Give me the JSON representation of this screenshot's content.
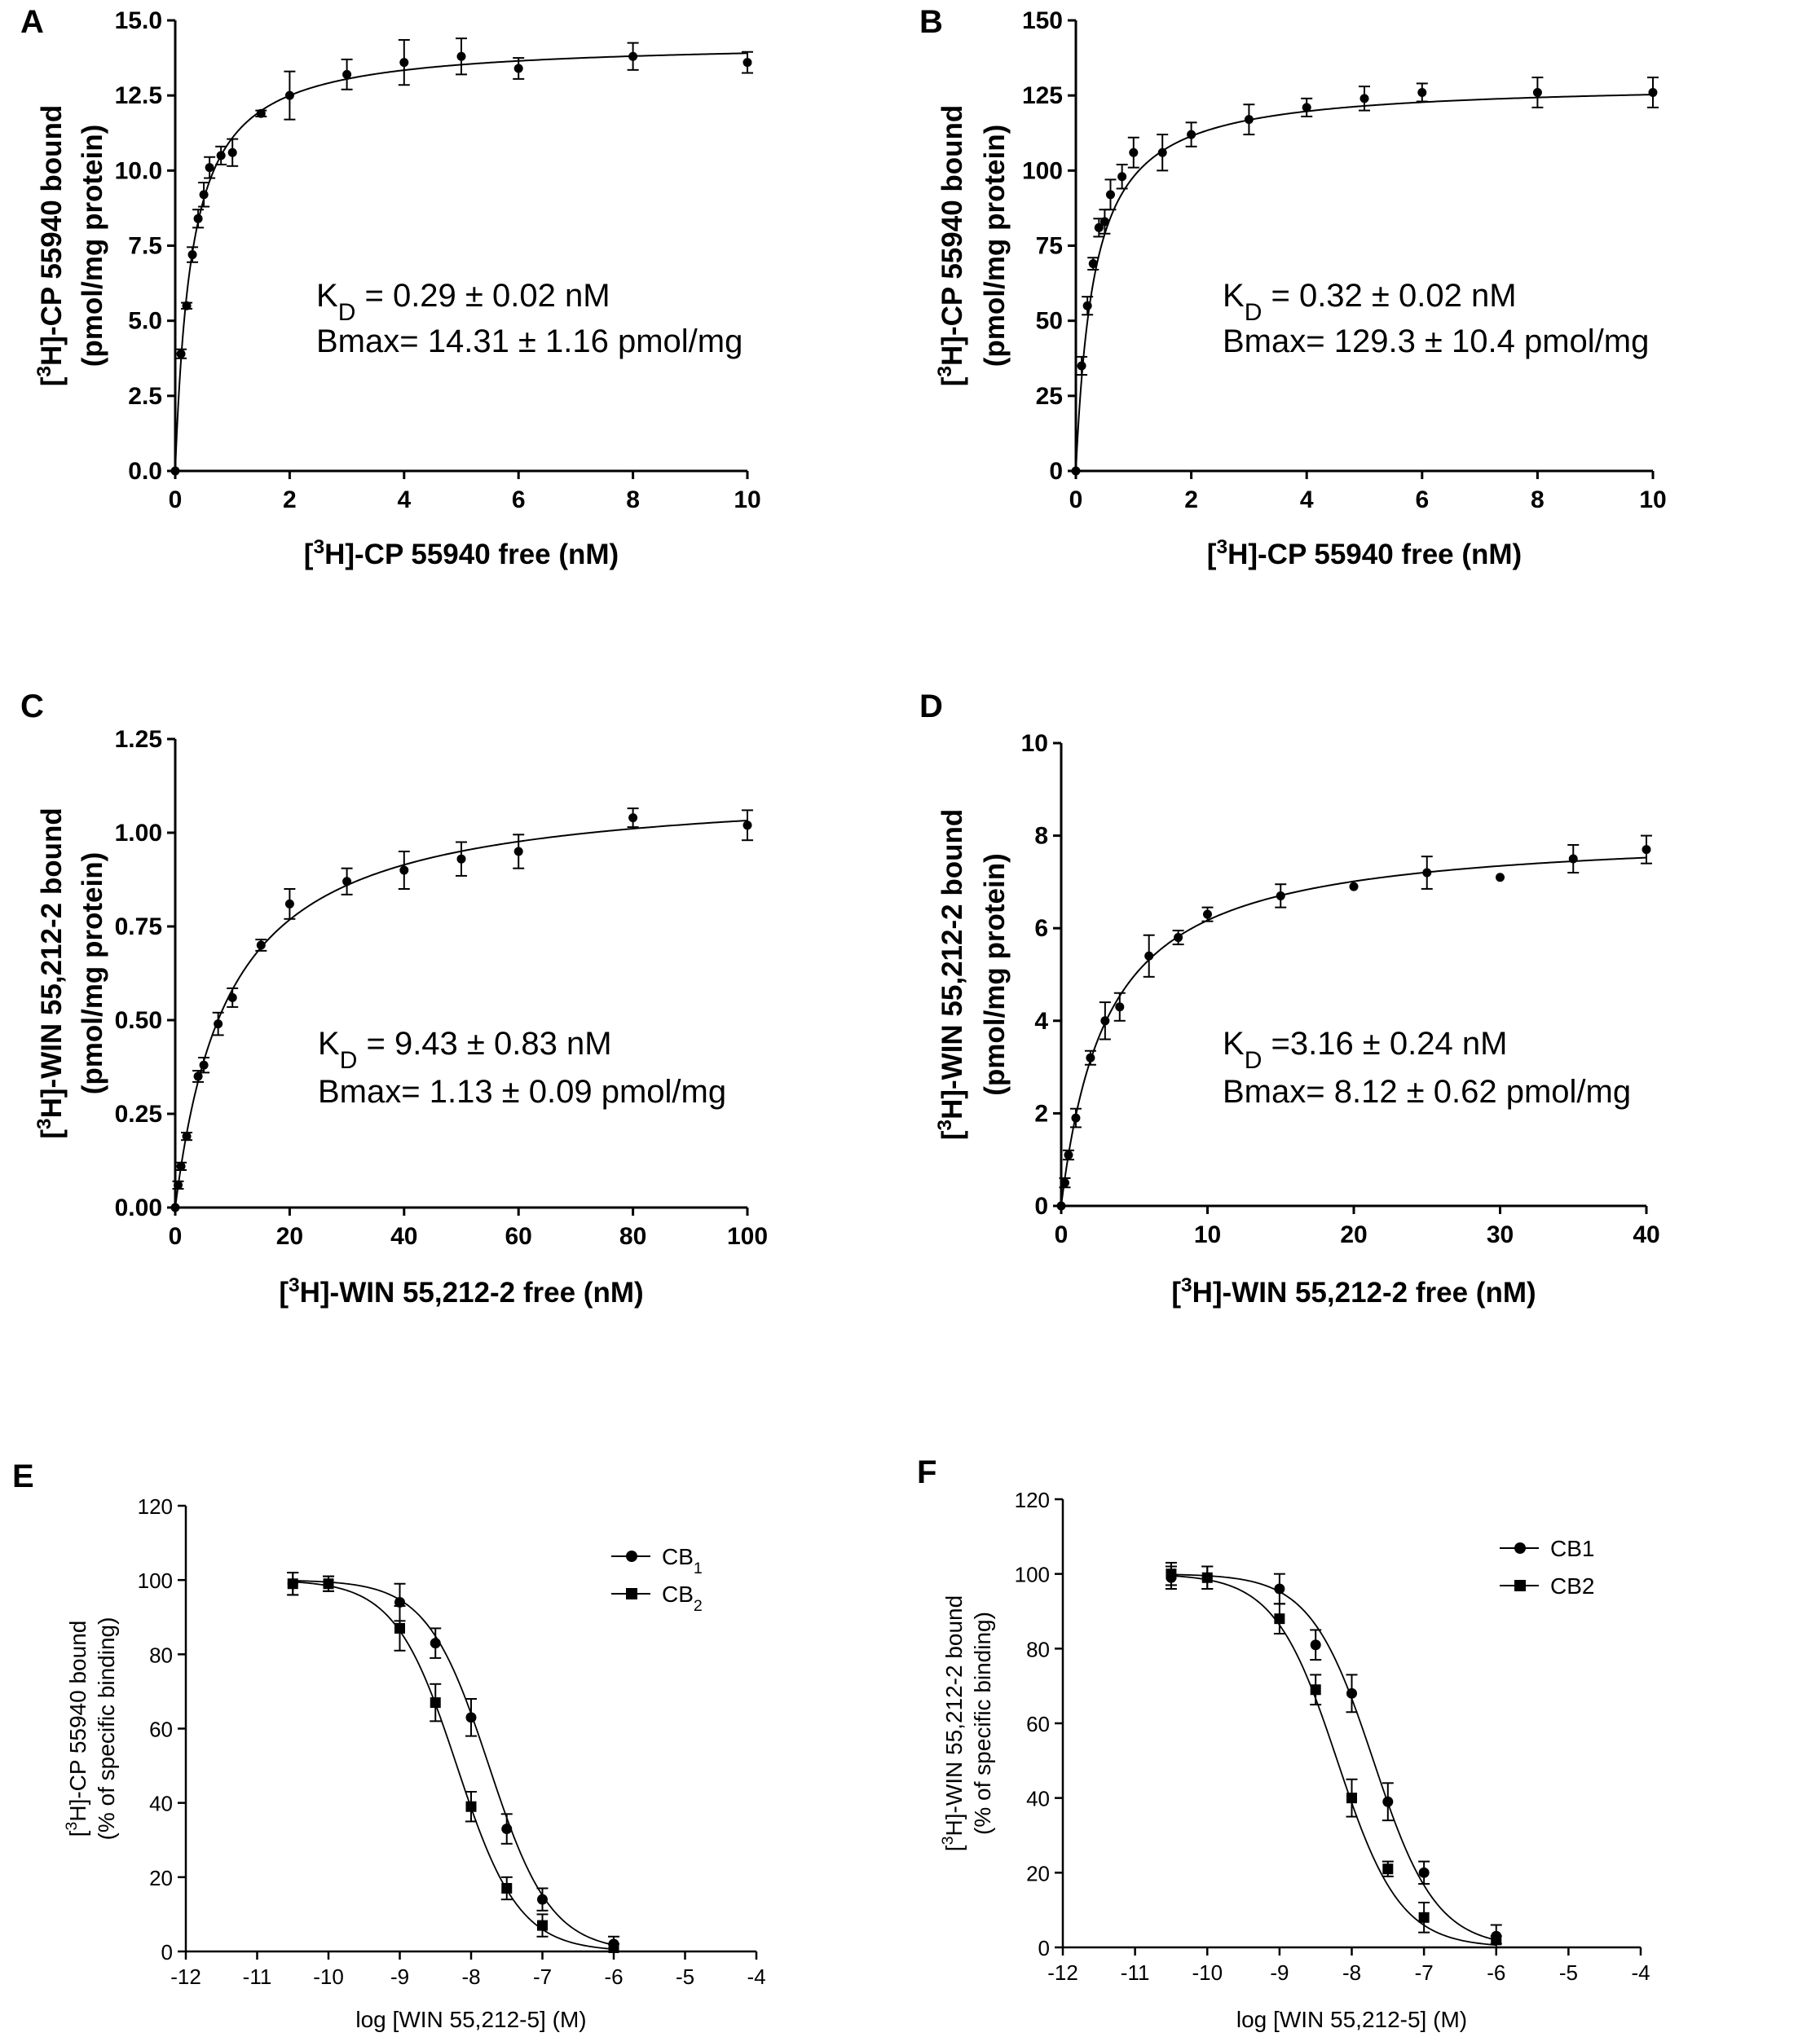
{
  "chart_data": [
    {
      "panel": "A",
      "type": "scatter",
      "title": "",
      "xlabel": "[³H]-CP 55940 free (nM)",
      "ylabel": "[³H]-CP 55940 bound (pmol/mg protein)",
      "ylabel_line1": "[³H]-CP 55940 bound",
      "ylabel_line2": "(pmol/mg protein)",
      "xlim": [
        0,
        10
      ],
      "ylim": [
        0,
        15
      ],
      "xticks": [
        0,
        2,
        4,
        6,
        8,
        10
      ],
      "yticks": [
        0,
        2.5,
        5,
        7.5,
        10,
        12.5,
        15
      ],
      "ytick_labels": [
        "0.0",
        "2.5",
        "5.0",
        "7.5",
        "10.0",
        "12.5",
        "15.0"
      ],
      "fit": {
        "model": "one-site",
        "bmax": 14.31,
        "kd": 0.29
      },
      "annotation_kd": "KD = 0.29 ± 0.02 nM",
      "annotation_bmax": "Bmax= 14.31 ± 1.16 pmol/mg",
      "series": [
        {
          "name": "data",
          "x": [
            0,
            0.1,
            0.2,
            0.3,
            0.4,
            0.5,
            0.6,
            0.8,
            1.0,
            1.5,
            2,
            3,
            4,
            5,
            6,
            8,
            10
          ],
          "y": [
            0,
            3.9,
            5.5,
            7.2,
            8.4,
            9.2,
            10.1,
            10.5,
            10.6,
            11.9,
            12.5,
            13.2,
            13.6,
            13.8,
            13.4,
            13.8,
            13.6
          ],
          "err": [
            0,
            0.15,
            0.1,
            0.25,
            0.3,
            0.4,
            0.35,
            0.3,
            0.45,
            0.1,
            0.8,
            0.5,
            0.75,
            0.6,
            0.35,
            0.45,
            0.35
          ]
        }
      ]
    },
    {
      "panel": "B",
      "type": "scatter",
      "title": "",
      "xlabel": "[³H]-CP 55940 free (nM)",
      "ylabel": "[³H]-CP 55940 bound (pmol/mg protein)",
      "ylabel_line1": "[³H]-CP 55940 bound",
      "ylabel_line2": "(pmol/mg protein)",
      "xlim": [
        0,
        10
      ],
      "ylim": [
        0,
        150
      ],
      "xticks": [
        0,
        2,
        4,
        6,
        8,
        10
      ],
      "yticks": [
        0,
        25,
        50,
        75,
        100,
        125,
        150
      ],
      "ytick_labels": [
        "0",
        "25",
        "50",
        "75",
        "100",
        "125",
        "150"
      ],
      "fit": {
        "model": "one-site",
        "bmax": 129.3,
        "kd": 0.32
      },
      "annotation_kd": "KD = 0.32 ± 0.02 nM",
      "annotation_bmax": "Bmax= 129.3 ± 10.4 pmol/mg",
      "series": [
        {
          "name": "data",
          "x": [
            0,
            0.1,
            0.2,
            0.3,
            0.4,
            0.5,
            0.6,
            0.8,
            1.0,
            1.5,
            2,
            3,
            4,
            5,
            6,
            8,
            10
          ],
          "y": [
            0,
            35,
            55,
            69,
            81,
            83,
            92,
            98,
            106,
            106,
            112,
            117,
            121,
            124,
            126,
            126,
            126
          ],
          "err": [
            0,
            3,
            3,
            2,
            3,
            4,
            5,
            4,
            5,
            6,
            4,
            5,
            3,
            4,
            3,
            5,
            5
          ]
        }
      ]
    },
    {
      "panel": "C",
      "type": "scatter",
      "title": "",
      "xlabel": "[³H]-WIN 55,212-2 free (nM)",
      "ylabel": "[³H]-WIN 55,212-2 bound (pmol/mg protein)",
      "ylabel_line1": "[³H]-WIN 55,212-2 bound",
      "ylabel_line2": "(pmol/mg protein)",
      "xlim": [
        0,
        100
      ],
      "ylim": [
        0,
        1.25
      ],
      "xticks": [
        0,
        20,
        40,
        60,
        80,
        100
      ],
      "yticks": [
        0,
        0.25,
        0.5,
        0.75,
        1.0,
        1.25
      ],
      "ytick_labels": [
        "0.00",
        "0.25",
        "0.50",
        "0.75",
        "1.00",
        "1.25"
      ],
      "fit": {
        "model": "one-site",
        "bmax": 1.13,
        "kd": 9.43
      },
      "annotation_kd": "KD = 9.43 ± 0.83 nM",
      "annotation_bmax": "Bmax= 1.13 ± 0.09 pmol/mg",
      "series": [
        {
          "name": "data",
          "x": [
            0,
            0.5,
            1,
            2,
            4,
            5,
            7.5,
            10,
            15,
            20,
            30,
            40,
            50,
            60,
            80,
            100
          ],
          "y": [
            0,
            0.06,
            0.11,
            0.19,
            0.35,
            0.38,
            0.49,
            0.56,
            0.7,
            0.81,
            0.87,
            0.9,
            0.93,
            0.95,
            1.04,
            1.02
          ],
          "err": [
            0,
            0.01,
            0.01,
            0.01,
            0.015,
            0.02,
            0.03,
            0.025,
            0.015,
            0.04,
            0.035,
            0.05,
            0.045,
            0.045,
            0.025,
            0.04
          ]
        }
      ]
    },
    {
      "panel": "D",
      "type": "scatter",
      "title": "",
      "xlabel": "[³H]-WIN 55,212-2 free (nM)",
      "ylabel": "[³H]-WIN 55,212-2 bound (pmol/mg protein)",
      "ylabel_line1": "[³H]-WIN 55,212-2 bound",
      "ylabel_line2": "(pmol/mg protein)",
      "xlim": [
        0,
        40
      ],
      "ylim": [
        0,
        10
      ],
      "xticks": [
        0,
        10,
        20,
        30,
        40
      ],
      "yticks": [
        0,
        2,
        4,
        6,
        8,
        10
      ],
      "ytick_labels": [
        "0",
        "2",
        "4",
        "6",
        "8",
        "10"
      ],
      "fit": {
        "model": "one-site",
        "bmax": 8.12,
        "kd": 3.16
      },
      "annotation_kd": "KD =3.16 ± 0.24 nM",
      "annotation_bmax": "Bmax= 8.12 ± 0.62 pmol/mg",
      "series": [
        {
          "name": "data",
          "x": [
            0,
            0.25,
            0.5,
            1,
            2,
            3,
            4,
            6,
            8,
            10,
            15,
            20,
            25,
            30,
            35,
            40
          ],
          "y": [
            0,
            0.5,
            1.1,
            1.9,
            3.2,
            4.0,
            4.3,
            5.4,
            5.8,
            6.3,
            6.7,
            6.9,
            7.2,
            7.1,
            7.5,
            7.7
          ],
          "err": [
            0,
            0.1,
            0.1,
            0.2,
            0.15,
            0.4,
            0.3,
            0.45,
            0.15,
            0.15,
            0.25,
            0,
            0.35,
            0,
            0.3,
            0.3
          ]
        }
      ]
    },
    {
      "panel": "E",
      "type": "scatter",
      "title": "",
      "xlabel": "log [WIN 55,212-5] (M)",
      "ylabel": "[³H]-CP 55940 bound (% of specific binding)",
      "ylabel_line1": "[³H]-CP 55940 bound",
      "ylabel_line2": "(% of specific binding)",
      "xlim": [
        -12,
        -4
      ],
      "ylim": [
        0,
        120
      ],
      "xticks": [
        -12,
        -11,
        -10,
        -9,
        -8,
        -7,
        -6,
        -5,
        -4
      ],
      "yticks": [
        0,
        20,
        40,
        60,
        80,
        100,
        120
      ],
      "ytick_labels": [
        "0",
        "20",
        "40",
        "60",
        "80",
        "100",
        "120"
      ],
      "legend_position": "top-right",
      "series": [
        {
          "name": "CB1",
          "legend_main": "CB",
          "legend_sub": "1",
          "marker": "circle",
          "fit": {
            "model": "sigmoid",
            "top": 100,
            "bottom": 0,
            "log_ic50": -7.75,
            "hill": 1.0
          },
          "x": [
            -10.5,
            -10,
            -9,
            -8.5,
            -8,
            -7.5,
            -7,
            -6
          ],
          "y": [
            99,
            99,
            94,
            83,
            63,
            33,
            14,
            2
          ],
          "err": [
            3,
            2,
            5,
            4,
            5,
            4,
            3,
            2
          ]
        },
        {
          "name": "CB2",
          "legend_main": "CB",
          "legend_sub": "2",
          "marker": "square",
          "fit": {
            "model": "sigmoid",
            "top": 100,
            "bottom": 0,
            "log_ic50": -8.2,
            "hill": 1.0
          },
          "x": [
            -10.5,
            -10,
            -9,
            -8.5,
            -8,
            -7.5,
            -7,
            -6
          ],
          "y": [
            99,
            99,
            87,
            67,
            39,
            17,
            7,
            1
          ],
          "err": [
            3,
            2,
            6,
            5,
            4,
            3,
            3,
            1
          ]
        }
      ]
    },
    {
      "panel": "F",
      "type": "scatter",
      "title": "",
      "xlabel": "log [WIN 55,212-5] (M)",
      "ylabel": "[³H]-WIN 55,212-2 bound (% of specific binding)",
      "ylabel_line1": "[³H]-WIN 55,212-2 bound",
      "ylabel_line2": "(% of specific binding)",
      "xlim": [
        -12,
        -4
      ],
      "ylim": [
        0,
        120
      ],
      "xticks": [
        -12,
        -11,
        -10,
        -9,
        -8,
        -7,
        -6,
        -5,
        -4
      ],
      "yticks": [
        0,
        20,
        40,
        60,
        80,
        100,
        120
      ],
      "ytick_labels": [
        "0",
        "20",
        "40",
        "60",
        "80",
        "100",
        "120"
      ],
      "legend_position": "top-right",
      "series": [
        {
          "name": "CB1",
          "legend_main": "CB1",
          "legend_sub": "",
          "marker": "circle",
          "fit": {
            "model": "sigmoid",
            "top": 100,
            "bottom": 0,
            "log_ic50": -7.7,
            "hill": 1.0
          },
          "x": [
            -10.5,
            -10,
            -9,
            -8.5,
            -8,
            -7.5,
            -7,
            -6
          ],
          "y": [
            99,
            99,
            96,
            81,
            68,
            39,
            20,
            3
          ],
          "err": [
            3,
            3,
            4,
            4,
            5,
            5,
            3,
            3
          ]
        },
        {
          "name": "CB2",
          "legend_main": "CB2",
          "legend_sub": "",
          "marker": "square",
          "fit": {
            "model": "sigmoid",
            "top": 100,
            "bottom": 0,
            "log_ic50": -8.2,
            "hill": 1.0
          },
          "x": [
            -10.5,
            -10,
            -9,
            -8.5,
            -8,
            -7.5,
            -7,
            -6
          ],
          "y": [
            100,
            99,
            88,
            69,
            40,
            21,
            8,
            2
          ],
          "err": [
            3,
            3,
            4,
            4,
            5,
            2,
            4,
            1
          ]
        }
      ]
    }
  ]
}
